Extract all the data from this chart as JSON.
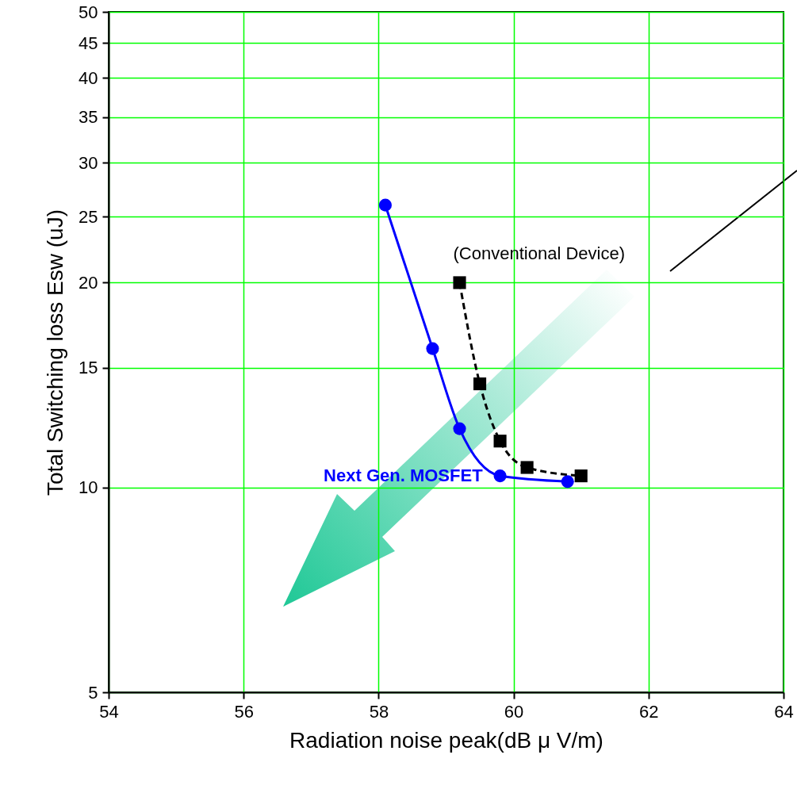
{
  "chart_data": {
    "type": "line",
    "xlabel": "Radiation noise peak(dB μ V/m)",
    "ylabel": "Total Switching loss Esw (uJ)",
    "xlim": [
      54,
      64
    ],
    "xticks": [
      54,
      56,
      58,
      60,
      62,
      64
    ],
    "ylim": [
      5,
      50
    ],
    "yticks": [
      5,
      10,
      15,
      20,
      25,
      30,
      35,
      40,
      45,
      50
    ],
    "log": "y",
    "grid": true,
    "series": [
      {
        "name": "Next Gen. MOSFET",
        "color": "#0000ff",
        "marker": "circle",
        "line_style": "solid",
        "x": [
          58.1,
          58.8,
          59.2,
          59.8,
          60.8
        ],
        "values": [
          26,
          16,
          12.2,
          10.4,
          10.2
        ]
      },
      {
        "name": "(Conventional Device)",
        "color": "#000000",
        "marker": "square",
        "line_style": "dashed",
        "x": [
          59.2,
          59.5,
          59.8,
          60.2,
          61.0
        ],
        "values": [
          20,
          14.2,
          11.7,
          10.7,
          10.4
        ]
      }
    ]
  }
}
